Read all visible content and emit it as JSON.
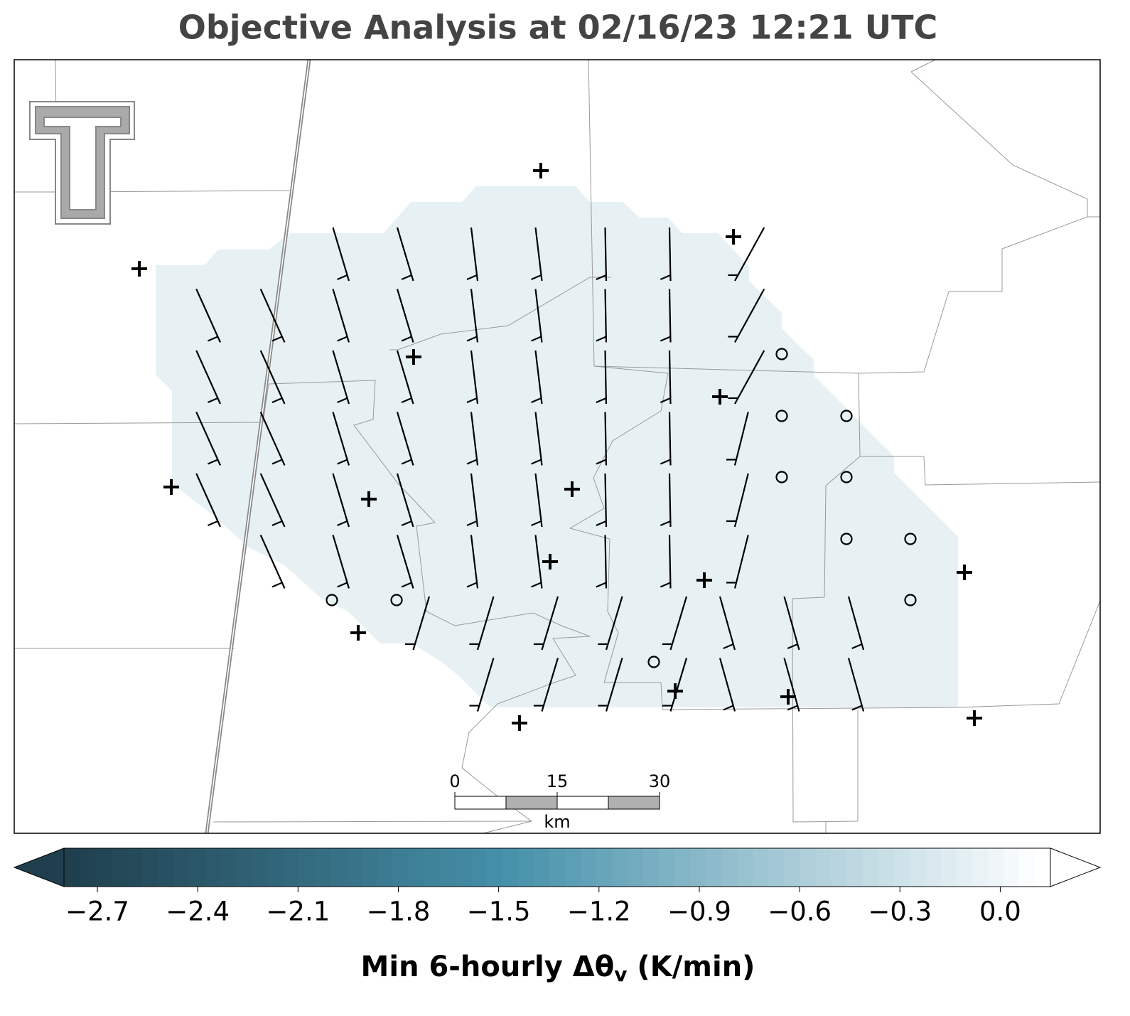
{
  "title": "Objective Analysis at 02/16/23 12:21 UTC",
  "scale_bar": {
    "ticks": [
      0,
      15,
      30
    ],
    "unit": "km"
  },
  "colorbar": {
    "clim": [
      -2.8,
      0.15
    ],
    "ticks": [
      {
        "value": -2.7,
        "label": "−2.7"
      },
      {
        "value": -2.4,
        "label": "−2.4"
      },
      {
        "value": -2.1,
        "label": "−2.1"
      },
      {
        "value": -1.8,
        "label": "−1.8"
      },
      {
        "value": -1.5,
        "label": "−1.5"
      },
      {
        "value": -1.2,
        "label": "−1.2"
      },
      {
        "value": -0.9,
        "label": "−0.9"
      },
      {
        "value": -0.6,
        "label": "−0.6"
      },
      {
        "value": -0.3,
        "label": "−0.3"
      },
      {
        "value": 0,
        "label": "0.0"
      }
    ],
    "label": "Min 6-hourly Δθ",
    "label_sub": "v",
    "label_suffix": " (K/min)"
  }
}
